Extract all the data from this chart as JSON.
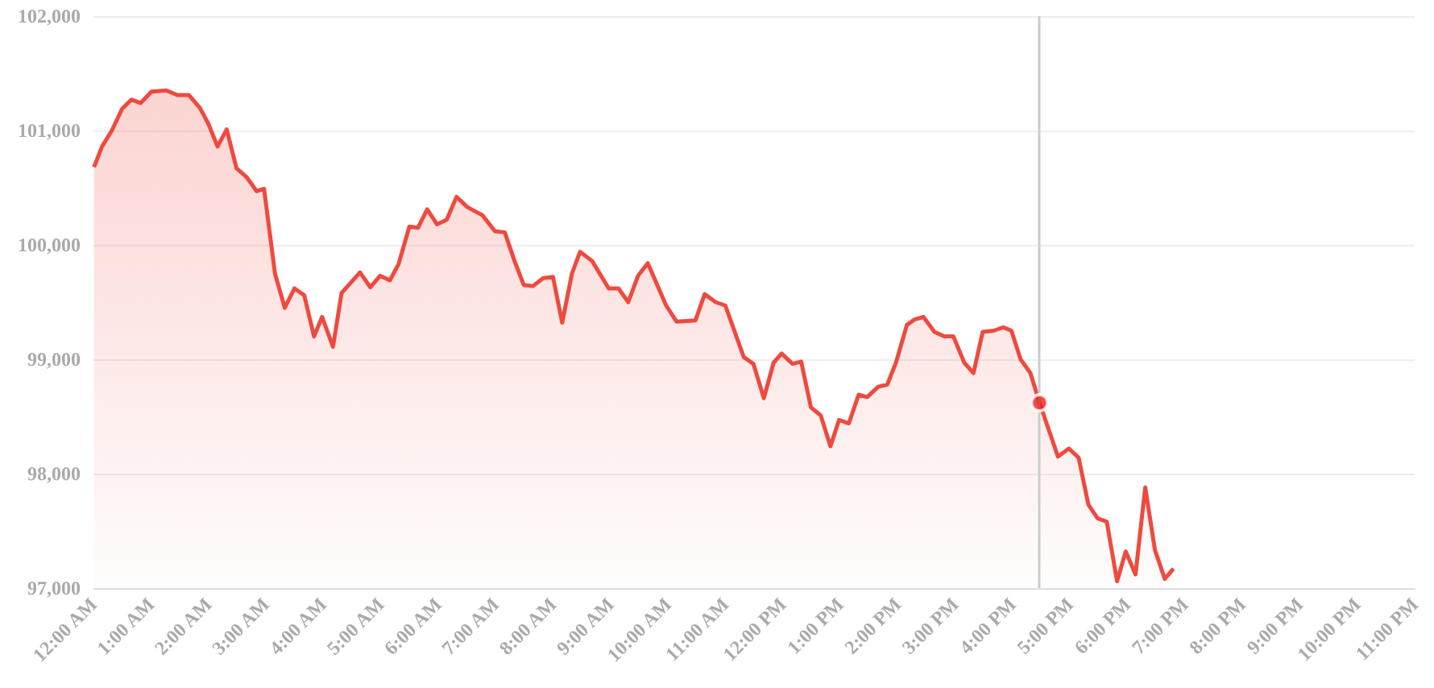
{
  "chart_data": {
    "type": "area",
    "grid": "y",
    "xlim": [
      0,
      23
    ],
    "xticks": [
      {
        "value": 0,
        "label": "12:00 AM"
      },
      {
        "value": 1,
        "label": "1:00 AM"
      },
      {
        "value": 2,
        "label": "2:00 AM"
      },
      {
        "value": 3,
        "label": "3:00 AM"
      },
      {
        "value": 4,
        "label": "4:00 AM"
      },
      {
        "value": 5,
        "label": "5:00 AM"
      },
      {
        "value": 6,
        "label": "6:00 AM"
      },
      {
        "value": 7,
        "label": "7:00 AM"
      },
      {
        "value": 8,
        "label": "8:00 AM"
      },
      {
        "value": 9,
        "label": "9:00 AM"
      },
      {
        "value": 10,
        "label": "10:00 AM"
      },
      {
        "value": 11,
        "label": "11:00 AM"
      },
      {
        "value": 12,
        "label": "12:00 PM"
      },
      {
        "value": 13,
        "label": "1:00 PM"
      },
      {
        "value": 14,
        "label": "2:00 PM"
      },
      {
        "value": 15,
        "label": "3:00 PM"
      },
      {
        "value": 16,
        "label": "4:00 PM"
      },
      {
        "value": 17,
        "label": "5:00 PM"
      },
      {
        "value": 18,
        "label": "6:00 PM"
      },
      {
        "value": 19,
        "label": "7:00 PM"
      },
      {
        "value": 20,
        "label": "8:00 PM"
      },
      {
        "value": 21,
        "label": "9:00 PM"
      },
      {
        "value": 22,
        "label": "10:00 PM"
      },
      {
        "value": 23,
        "label": "11:00 PM"
      }
    ],
    "ylim": [
      97000,
      102000
    ],
    "yticks": [
      {
        "value": 97000,
        "label": "97,000"
      },
      {
        "value": 98000,
        "label": "98,000"
      },
      {
        "value": 99000,
        "label": "99,000"
      },
      {
        "value": 100000,
        "label": "100,000"
      },
      {
        "value": 101000,
        "label": "101,000"
      },
      {
        "value": 102000,
        "label": "102,000"
      }
    ],
    "ref_lines": [
      {
        "axis": "x",
        "value": 16.47,
        "color": "#cccccc"
      }
    ],
    "series": [
      {
        "color": "#ef4a3f",
        "marker": "none",
        "x": [
          0.01,
          0.15,
          0.32,
          0.5,
          0.66,
          0.82,
          1.01,
          1.27,
          1.46,
          1.66,
          1.85,
          2.0,
          2.16,
          2.32,
          2.49,
          2.67,
          2.84,
          2.97,
          3.16,
          3.33,
          3.5,
          3.67,
          3.84,
          3.98,
          4.17,
          4.32,
          4.64,
          4.82,
          4.99,
          5.16,
          5.31,
          5.5,
          5.65,
          5.81,
          5.98,
          6.15,
          6.32,
          6.51,
          6.77,
          6.99,
          7.16,
          7.33,
          7.49,
          7.65,
          7.83,
          8.0,
          8.16,
          8.33,
          8.47,
          8.68,
          8.97,
          9.14,
          9.31,
          9.48,
          9.65,
          9.97,
          10.15,
          10.48,
          10.64,
          10.83,
          11.0,
          11.32,
          11.49,
          11.67,
          11.84,
          11.98,
          12.17,
          12.32,
          12.49,
          12.66,
          12.83,
          12.98,
          13.15,
          13.32,
          13.47,
          13.66,
          13.82,
          13.97,
          14.16,
          14.3,
          14.45,
          14.64,
          14.81,
          14.97,
          15.16,
          15.32,
          15.48,
          15.67,
          15.84,
          15.98,
          16.14,
          16.31,
          16.47,
          16.79,
          16.98,
          17.15,
          17.32,
          17.48,
          17.64,
          17.82,
          17.97,
          18.14,
          18.31,
          18.48,
          18.65,
          18.8
        ],
        "values": [
          100680,
          100860,
          101000,
          101190,
          101270,
          101240,
          101340,
          101350,
          101310,
          101310,
          101200,
          101060,
          100860,
          101010,
          100670,
          100590,
          100470,
          100490,
          99750,
          99450,
          99620,
          99560,
          99200,
          99370,
          99110,
          99580,
          99760,
          99630,
          99730,
          99690,
          99830,
          100160,
          100150,
          100310,
          100180,
          100220,
          100420,
          100330,
          100260,
          100120,
          100110,
          99860,
          99650,
          99640,
          99710,
          99720,
          99320,
          99750,
          99940,
          99860,
          99620,
          99620,
          99500,
          99730,
          99840,
          99470,
          99330,
          99340,
          99570,
          99500,
          99470,
          99020,
          98960,
          98660,
          98970,
          99050,
          98960,
          98980,
          98580,
          98510,
          98240,
          98470,
          98440,
          98690,
          98670,
          98760,
          98780,
          98970,
          99300,
          99350,
          99370,
          99240,
          99200,
          99200,
          98970,
          98880,
          99240,
          99250,
          99280,
          99250,
          99000,
          98880,
          98620,
          98150,
          98220,
          98140,
          97730,
          97610,
          97580,
          97060,
          97320,
          97120,
          97880,
          97330,
          97080,
          97170
        ]
      },
      {
        "type": "scatter",
        "color": "#e8221b",
        "marker": "circle",
        "x": [
          16.47
        ],
        "values": [
          98620
        ]
      }
    ]
  }
}
